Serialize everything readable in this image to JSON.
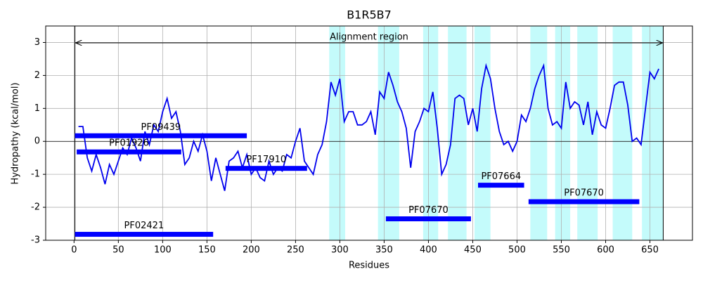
{
  "chart_data": {
    "type": "line",
    "title": "B1R5B7",
    "xlabel": "Residues",
    "ylabel": "Hydropathy (kcal/mol)",
    "xlim": [
      -32,
      698
    ],
    "ylim": [
      -3,
      3.5
    ],
    "xticks": [
      0,
      50,
      100,
      150,
      200,
      250,
      300,
      350,
      400,
      450,
      500,
      550,
      600,
      650
    ],
    "yticks": [
      -3,
      -2,
      -1,
      0,
      1,
      2,
      3
    ],
    "grid": true,
    "color": "#0000ee",
    "zero_line": 0,
    "alignment_region": {
      "label": "Alignment region",
      "start": 1,
      "end": 665
    },
    "highlight_color": "#c4fbfb",
    "highlights": [
      [
        288,
        306
      ],
      [
        343,
        367
      ],
      [
        394,
        411
      ],
      [
        422,
        443
      ],
      [
        452,
        470
      ],
      [
        515,
        534
      ],
      [
        543,
        560
      ],
      [
        568,
        591
      ],
      [
        608,
        630
      ],
      [
        641,
        665
      ]
    ],
    "domain_color": "#0000ff",
    "domains": [
      {
        "name": "PF09439",
        "start": 1,
        "end": 195,
        "y": 0.17
      },
      {
        "name": "PF01926",
        "start": 3,
        "end": 121,
        "y": -0.32
      },
      {
        "name": "PF17910",
        "start": 171,
        "end": 263,
        "y": -0.82
      },
      {
        "name": "PF02421",
        "start": 1,
        "end": 157,
        "y": -2.82
      },
      {
        "name": "PF07670",
        "start": 352,
        "end": 448,
        "y": -2.35
      },
      {
        "name": "PF07664",
        "start": 456,
        "end": 508,
        "y": -1.33
      },
      {
        "name": "PF07670",
        "start": 513,
        "end": 638,
        "y": -1.83
      }
    ],
    "x": [
      5,
      10,
      15,
      20,
      25,
      30,
      35,
      40,
      45,
      50,
      55,
      60,
      65,
      70,
      75,
      80,
      85,
      90,
      95,
      100,
      105,
      110,
      115,
      120,
      125,
      130,
      135,
      140,
      145,
      150,
      155,
      160,
      165,
      170,
      175,
      180,
      185,
      190,
      195,
      200,
      205,
      210,
      215,
      220,
      225,
      230,
      235,
      240,
      245,
      250,
      255,
      260,
      265,
      270,
      275,
      280,
      285,
      290,
      295,
      300,
      305,
      310,
      315,
      320,
      325,
      330,
      335,
      340,
      345,
      350,
      355,
      360,
      365,
      370,
      375,
      380,
      385,
      390,
      395,
      400,
      405,
      410,
      415,
      420,
      425,
      430,
      435,
      440,
      445,
      450,
      455,
      460,
      465,
      470,
      475,
      480,
      485,
      490,
      495,
      500,
      505,
      510,
      515,
      520,
      525,
      530,
      535,
      540,
      545,
      550,
      555,
      560,
      565,
      570,
      575,
      580,
      585,
      590,
      595,
      600,
      605,
      610,
      615,
      620,
      625,
      630,
      635,
      640,
      645,
      650,
      655,
      660
    ],
    "values": [
      0.45,
      0.45,
      -0.5,
      -0.9,
      -0.4,
      -0.8,
      -1.3,
      -0.7,
      -1.0,
      -0.6,
      -0.2,
      -0.4,
      0.1,
      -0.2,
      -0.6,
      0.3,
      -0.1,
      0.5,
      0.3,
      0.9,
      1.3,
      0.7,
      0.9,
      0.3,
      -0.7,
      -0.5,
      0.0,
      -0.3,
      0.2,
      -0.3,
      -1.2,
      -0.5,
      -1.0,
      -1.5,
      -0.6,
      -0.5,
      -0.3,
      -0.8,
      -0.4,
      -1.0,
      -0.8,
      -1.1,
      -1.2,
      -0.6,
      -1.0,
      -0.8,
      -0.9,
      -0.4,
      -0.5,
      0.0,
      0.4,
      -0.6,
      -0.8,
      -1.0,
      -0.4,
      -0.1,
      0.6,
      1.8,
      1.4,
      1.9,
      0.6,
      0.9,
      0.9,
      0.5,
      0.5,
      0.6,
      0.9,
      0.2,
      1.5,
      1.3,
      2.1,
      1.7,
      1.2,
      0.9,
      0.4,
      -0.8,
      0.3,
      0.6,
      1.0,
      0.9,
      1.5,
      0.4,
      -1.0,
      -0.7,
      -0.1,
      1.3,
      1.4,
      1.3,
      0.5,
      1.0,
      0.3,
      1.6,
      2.3,
      1.9,
      1.0,
      0.3,
      -0.1,
      0.0,
      -0.3,
      0.0,
      0.8,
      0.6,
      1.0,
      1.6,
      2.0,
      2.3,
      1.0,
      0.5,
      0.6,
      0.4,
      1.8,
      1.0,
      1.2,
      1.1,
      0.5,
      1.2,
      0.2,
      0.9,
      0.5,
      0.4,
      1.0,
      1.7,
      1.8,
      1.8,
      1.1,
      0.0,
      0.1,
      -0.1,
      1.0,
      2.1,
      1.9,
      2.2
    ]
  }
}
